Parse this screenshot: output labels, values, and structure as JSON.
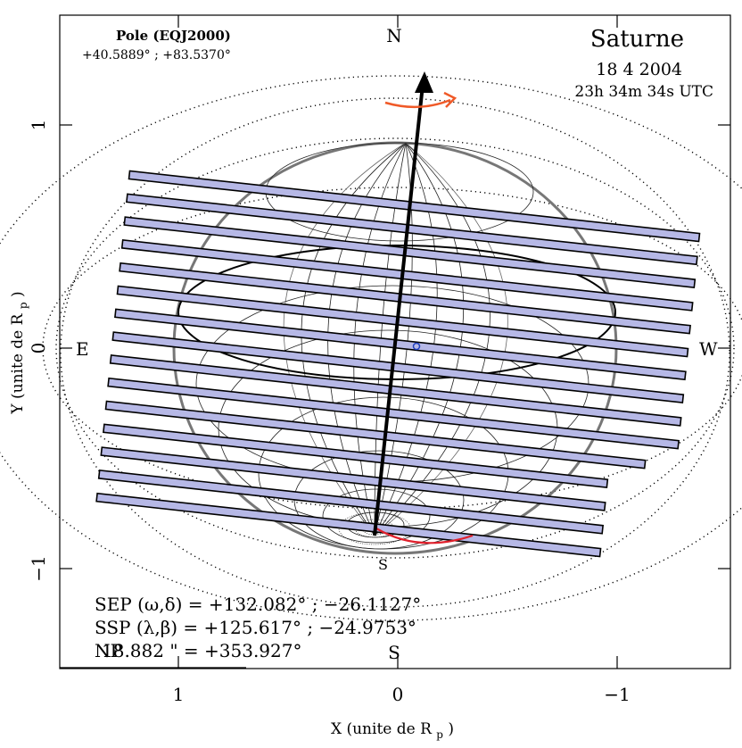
{
  "title": "Saturne",
  "date": "18 4 2004",
  "time": "23h 34m 34s UTC",
  "pole": {
    "label": "Pole (EQJ2000)",
    "values": "+40.5889° ; +83.5370°"
  },
  "cardinals": {
    "north": "N",
    "east": "E",
    "west": "W",
    "south_bottom": "S",
    "south_pole": "S"
  },
  "axes": {
    "xlabel": "X (unite de R",
    "xlabel_sub": "p",
    "xlabel_close": ")",
    "ylabel": "Y (unite de R",
    "ylabel_sub": "p",
    "ylabel_close": ")",
    "xticks": [
      "1",
      "0",
      "−1"
    ],
    "yticks": [
      "1",
      "0",
      "−1"
    ],
    "xlim": [
      1.55,
      -1.55
    ],
    "ylim": [
      -1.45,
      1.45
    ]
  },
  "info": {
    "sep": "SEP (ω,δ) = +132.082° ; −26.1127°",
    "ssp": "SSP (λ,β) = +125.617° ; −24.9753°",
    "np": "NP",
    "np_value": "18.882 \" = +353.927°"
  },
  "colors": {
    "slit_fill": "#b6b8e6",
    "slit_stroke": "#000000",
    "rotation_arrow": "#f05a28",
    "red_arc": "#e0202c",
    "center_marker": "#2040c0"
  },
  "slit_count": 15
}
